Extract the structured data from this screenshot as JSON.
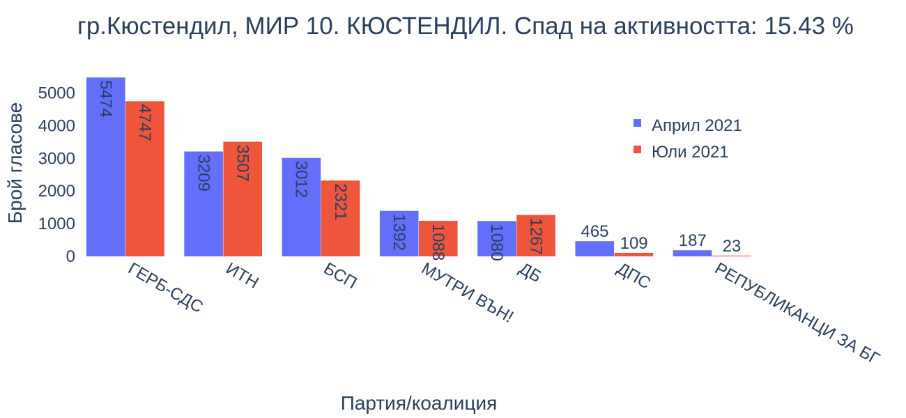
{
  "chart_data": {
    "type": "bar",
    "title": "гр.Кюстендил, МИР 10. КЮСТЕНДИЛ. Спад на активността: 15.43 %",
    "xlabel": "Партия/коалиция",
    "ylabel": "Брой гласове",
    "ylim": [
      0,
      5500
    ],
    "yticks": [
      0,
      1000,
      2000,
      3000,
      4000,
      5000
    ],
    "categories": [
      "ГЕРБ-СДС",
      "ИТН",
      "БСП",
      "МУТРИ ВЪН!",
      "ДБ",
      "ДПС",
      "РЕПУБЛИКАНЦИ ЗА БГ"
    ],
    "series": [
      {
        "name": "Април 2021",
        "color": "#636efa",
        "values": [
          5474,
          3209,
          3012,
          1392,
          1080,
          465,
          187
        ]
      },
      {
        "name": "Юли 2021",
        "color": "#ef553b",
        "values": [
          4747,
          3507,
          2321,
          1088,
          1267,
          109,
          23
        ]
      }
    ],
    "legend_position": "top-right",
    "grid": false
  }
}
